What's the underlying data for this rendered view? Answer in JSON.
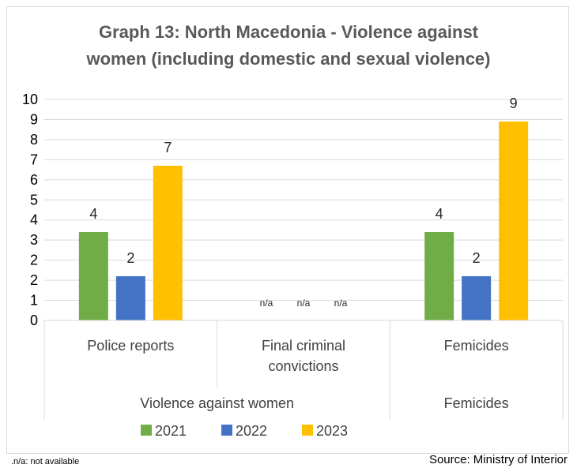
{
  "title_lines": [
    "Graph 13: North Macedonia - Violence against",
    "women (including domestic and sexual violence)"
  ],
  "footnote": ".n/a: not available",
  "source": "Source: Ministry of Interior",
  "chart_data": {
    "type": "bar",
    "title": "Graph 13: North Macedonia - Violence against women (including domestic and sexual violence)",
    "categories": [
      "Police reports",
      "Final criminal convictions",
      "Femicides"
    ],
    "category_label_lines": [
      [
        "Police reports"
      ],
      [
        "Final criminal",
        "convictions"
      ],
      [
        "Femicides"
      ]
    ],
    "groups": [
      {
        "label": "Violence against women",
        "categories": [
          0,
          1
        ]
      },
      {
        "label": "Femicides",
        "categories": [
          2
        ]
      }
    ],
    "series": [
      {
        "name": "2021",
        "color": "#70ad47",
        "values": [
          4,
          null,
          4
        ],
        "labels": [
          "4",
          "n/a",
          "4"
        ]
      },
      {
        "name": "2022",
        "color": "#4472c4",
        "values": [
          2,
          null,
          2
        ],
        "labels": [
          "2",
          "n/a",
          "2"
        ]
      },
      {
        "name": "2023",
        "color": "#ffc000",
        "values": [
          7,
          null,
          9
        ],
        "labels": [
          "7",
          "n/a",
          "9"
        ]
      }
    ],
    "y_ticks": [
      "0",
      "1",
      "2",
      "2",
      "3",
      "4",
      "5",
      "6",
      "7",
      "8",
      "9",
      "10"
    ],
    "ylim": [
      0,
      10
    ],
    "grid": true,
    "legend_position": "bottom"
  }
}
